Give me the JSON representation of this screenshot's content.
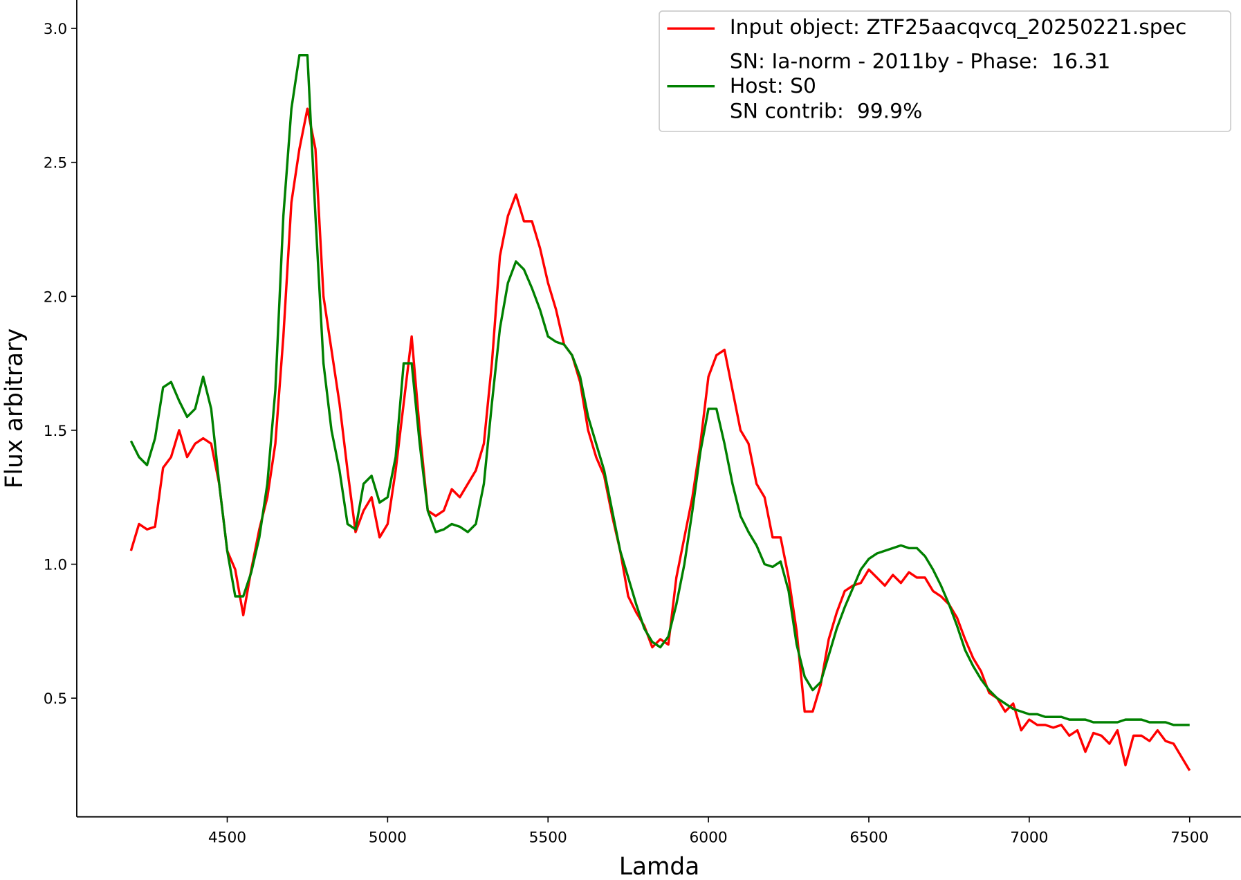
{
  "chart_data": {
    "type": "line",
    "x_label": "Lamda",
    "y_label": "Flux arbitrary",
    "xlim": [
      4031,
      7660
    ],
    "ylim": [
      0.057,
      3.106
    ],
    "xticks": [
      4500,
      5000,
      5500,
      6000,
      6500,
      7000,
      7500
    ],
    "yticks": [
      {
        "value": 0.5,
        "label": "0.5"
      },
      {
        "value": 1.0,
        "label": "1.0"
      },
      {
        "value": 1.5,
        "label": "1.5"
      },
      {
        "value": 2.0,
        "label": "2.0"
      },
      {
        "value": 2.5,
        "label": "2.5"
      },
      {
        "value": 3.0,
        "label": "3.0"
      }
    ],
    "grid": false,
    "legend": "upper right",
    "x": [
      4200,
      4225,
      4250,
      4275,
      4300,
      4325,
      4350,
      4375,
      4400,
      4425,
      4450,
      4475,
      4500,
      4525,
      4550,
      4575,
      4600,
      4625,
      4650,
      4675,
      4700,
      4725,
      4750,
      4775,
      4800,
      4825,
      4850,
      4875,
      4900,
      4925,
      4950,
      4975,
      5000,
      5025,
      5050,
      5075,
      5100,
      5125,
      5150,
      5175,
      5200,
      5225,
      5250,
      5275,
      5300,
      5325,
      5350,
      5375,
      5400,
      5425,
      5450,
      5475,
      5500,
      5525,
      5550,
      5575,
      5600,
      5625,
      5650,
      5675,
      5700,
      5725,
      5750,
      5775,
      5800,
      5825,
      5850,
      5875,
      5900,
      5925,
      5950,
      5975,
      6000,
      6025,
      6050,
      6075,
      6100,
      6125,
      6150,
      6175,
      6200,
      6225,
      6250,
      6275,
      6300,
      6325,
      6350,
      6375,
      6400,
      6425,
      6450,
      6475,
      6500,
      6525,
      6550,
      6575,
      6600,
      6625,
      6650,
      6675,
      6700,
      6725,
      6750,
      6775,
      6800,
      6825,
      6850,
      6875,
      6900,
      6925,
      6950,
      6975,
      7000,
      7025,
      7050,
      7075,
      7100,
      7125,
      7150,
      7175,
      7200,
      7225,
      7250,
      7275,
      7300,
      7325,
      7350,
      7375,
      7400,
      7425,
      7450,
      7475,
      7500
    ],
    "series": [
      {
        "name": "Input object: ZTF25aacqvcq_20250221.spec",
        "color": "#ff0000",
        "values": [
          1.05,
          1.15,
          1.13,
          1.14,
          1.36,
          1.4,
          1.5,
          1.4,
          1.45,
          1.47,
          1.45,
          1.3,
          1.05,
          0.98,
          0.81,
          0.98,
          1.13,
          1.25,
          1.45,
          1.85,
          2.35,
          2.55,
          2.7,
          2.55,
          2.0,
          1.8,
          1.6,
          1.35,
          1.12,
          1.2,
          1.25,
          1.1,
          1.15,
          1.35,
          1.6,
          1.85,
          1.5,
          1.2,
          1.18,
          1.2,
          1.28,
          1.25,
          1.3,
          1.35,
          1.45,
          1.75,
          2.15,
          2.3,
          2.38,
          2.28,
          2.28,
          2.18,
          2.05,
          1.95,
          1.82,
          1.78,
          1.68,
          1.5,
          1.4,
          1.33,
          1.18,
          1.05,
          0.88,
          0.82,
          0.77,
          0.69,
          0.72,
          0.7,
          0.95,
          1.1,
          1.25,
          1.45,
          1.7,
          1.78,
          1.8,
          1.65,
          1.5,
          1.45,
          1.3,
          1.25,
          1.1,
          1.1,
          0.95,
          0.75,
          0.45,
          0.45,
          0.55,
          0.72,
          0.82,
          0.9,
          0.92,
          0.93,
          0.98,
          0.95,
          0.92,
          0.96,
          0.93,
          0.97,
          0.95,
          0.95,
          0.9,
          0.88,
          0.85,
          0.8,
          0.72,
          0.65,
          0.6,
          0.52,
          0.5,
          0.45,
          0.48,
          0.38,
          0.42,
          0.4,
          0.4,
          0.39,
          0.4,
          0.36,
          0.38,
          0.3,
          0.37,
          0.36,
          0.33,
          0.38,
          0.25,
          0.36,
          0.36,
          0.34,
          0.38,
          0.34,
          0.33,
          0.28,
          0.23
        ]
      },
      {
        "name": "SN: Ia-norm - 2011by - Phase:  16.31\nHost: S0\nSN contrib:  99.9%",
        "color": "#008000",
        "values": [
          1.46,
          1.4,
          1.37,
          1.47,
          1.66,
          1.68,
          1.61,
          1.55,
          1.58,
          1.7,
          1.58,
          1.3,
          1.05,
          0.88,
          0.88,
          0.97,
          1.1,
          1.3,
          1.65,
          2.3,
          2.7,
          2.9,
          2.9,
          2.3,
          1.75,
          1.5,
          1.35,
          1.15,
          1.13,
          1.3,
          1.33,
          1.23,
          1.25,
          1.4,
          1.75,
          1.75,
          1.45,
          1.2,
          1.12,
          1.13,
          1.15,
          1.14,
          1.12,
          1.15,
          1.3,
          1.6,
          1.88,
          2.05,
          2.13,
          2.1,
          2.03,
          1.95,
          1.85,
          1.83,
          1.82,
          1.78,
          1.7,
          1.55,
          1.45,
          1.35,
          1.2,
          1.05,
          0.95,
          0.85,
          0.76,
          0.71,
          0.69,
          0.73,
          0.85,
          1.0,
          1.2,
          1.42,
          1.58,
          1.58,
          1.45,
          1.3,
          1.18,
          1.12,
          1.07,
          1.0,
          0.99,
          1.01,
          0.9,
          0.7,
          0.58,
          0.53,
          0.56,
          0.66,
          0.76,
          0.84,
          0.91,
          0.98,
          1.02,
          1.04,
          1.05,
          1.06,
          1.07,
          1.06,
          1.06,
          1.03,
          0.98,
          0.92,
          0.85,
          0.77,
          0.68,
          0.62,
          0.57,
          0.53,
          0.5,
          0.48,
          0.46,
          0.45,
          0.44,
          0.44,
          0.43,
          0.43,
          0.43,
          0.42,
          0.42,
          0.42,
          0.41,
          0.41,
          0.41,
          0.41,
          0.42,
          0.42,
          0.42,
          0.41,
          0.41,
          0.41,
          0.4,
          0.4,
          0.4
        ]
      }
    ]
  }
}
